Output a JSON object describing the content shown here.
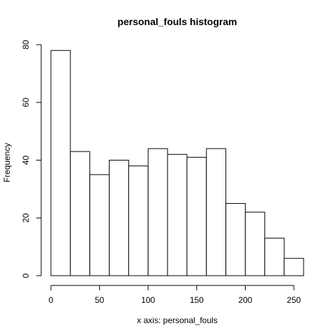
{
  "chart_data": {
    "type": "bar",
    "title": "personal_fouls histogram",
    "xlabel": "x axis: personal_fouls",
    "ylabel": "Frequency",
    "bins": [
      {
        "from": 0,
        "to": 20,
        "count": 78
      },
      {
        "from": 20,
        "to": 40,
        "count": 43
      },
      {
        "from": 40,
        "to": 60,
        "count": 35
      },
      {
        "from": 60,
        "to": 80,
        "count": 40
      },
      {
        "from": 80,
        "to": 100,
        "count": 38
      },
      {
        "from": 100,
        "to": 120,
        "count": 44
      },
      {
        "from": 120,
        "to": 140,
        "count": 42
      },
      {
        "from": 140,
        "to": 160,
        "count": 41
      },
      {
        "from": 160,
        "to": 180,
        "count": 44
      },
      {
        "from": 180,
        "to": 200,
        "count": 25
      },
      {
        "from": 200,
        "to": 220,
        "count": 22
      },
      {
        "from": 220,
        "to": 240,
        "count": 13
      },
      {
        "from": 240,
        "to": 260,
        "count": 6
      }
    ],
    "xlim": [
      0,
      260
    ],
    "ylim": [
      0,
      80
    ],
    "xticks": [
      0,
      50,
      100,
      150,
      200,
      250
    ],
    "yticks": [
      0,
      20,
      40,
      60,
      80
    ],
    "grid": false,
    "legend": "none",
    "bar_fill": "#ffffff",
    "bar_stroke": "#000000"
  }
}
